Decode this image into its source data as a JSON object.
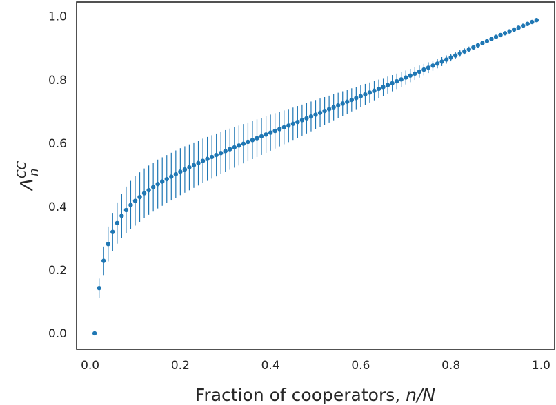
{
  "chart_data": {
    "type": "scatter",
    "style": "points with vertical error bars",
    "xlabel": "Fraction of cooperators, ",
    "xlabel_var": "n/N",
    "ylabel_base": "Λ",
    "ylabel_sup": "CC",
    "ylabel_sub": "n",
    "xlim": [
      -0.03,
      1.03
    ],
    "ylim": [
      -0.05,
      1.045
    ],
    "xticks": [
      0.0,
      0.2,
      0.4,
      0.6,
      0.8,
      1.0
    ],
    "xtick_labels": [
      "0.0",
      "0.2",
      "0.4",
      "0.6",
      "0.8",
      "1.0"
    ],
    "yticks": [
      0.0,
      0.2,
      0.4,
      0.6,
      0.8,
      1.0
    ],
    "ytick_labels": [
      "0.0",
      "0.2",
      "0.4",
      "0.6",
      "0.8",
      "1.0"
    ],
    "grid": false,
    "color": "#1f77b4",
    "x_values": "n/N for n = 1 … 99, N = 100",
    "points": [
      [
        0.01,
        0.0,
        0.0
      ],
      [
        0.02,
        0.143,
        0.03
      ],
      [
        0.03,
        0.229,
        0.045
      ],
      [
        0.04,
        0.282,
        0.055
      ],
      [
        0.05,
        0.32,
        0.06
      ],
      [
        0.06,
        0.348,
        0.065
      ],
      [
        0.07,
        0.371,
        0.07
      ],
      [
        0.08,
        0.389,
        0.074
      ],
      [
        0.09,
        0.405,
        0.076
      ],
      [
        0.1,
        0.418,
        0.078
      ],
      [
        0.12,
        0.442,
        0.078
      ],
      [
        0.15,
        0.471,
        0.077
      ],
      [
        0.2,
        0.51,
        0.074
      ],
      [
        0.25,
        0.544,
        0.07
      ],
      [
        0.3,
        0.575,
        0.066
      ],
      [
        0.35,
        0.604,
        0.061
      ],
      [
        0.4,
        0.633,
        0.057
      ],
      [
        0.45,
        0.661,
        0.051
      ],
      [
        0.5,
        0.69,
        0.046
      ],
      [
        0.55,
        0.719,
        0.04
      ],
      [
        0.6,
        0.748,
        0.034
      ],
      [
        0.65,
        0.777,
        0.028
      ],
      [
        0.7,
        0.807,
        0.022
      ],
      [
        0.75,
        0.838,
        0.017
      ],
      [
        0.8,
        0.87,
        0.012
      ],
      [
        0.85,
        0.902,
        0.008
      ],
      [
        0.9,
        0.935,
        0.005
      ],
      [
        0.95,
        0.964,
        0.002
      ],
      [
        0.99,
        0.988,
        0.0
      ]
    ]
  }
}
